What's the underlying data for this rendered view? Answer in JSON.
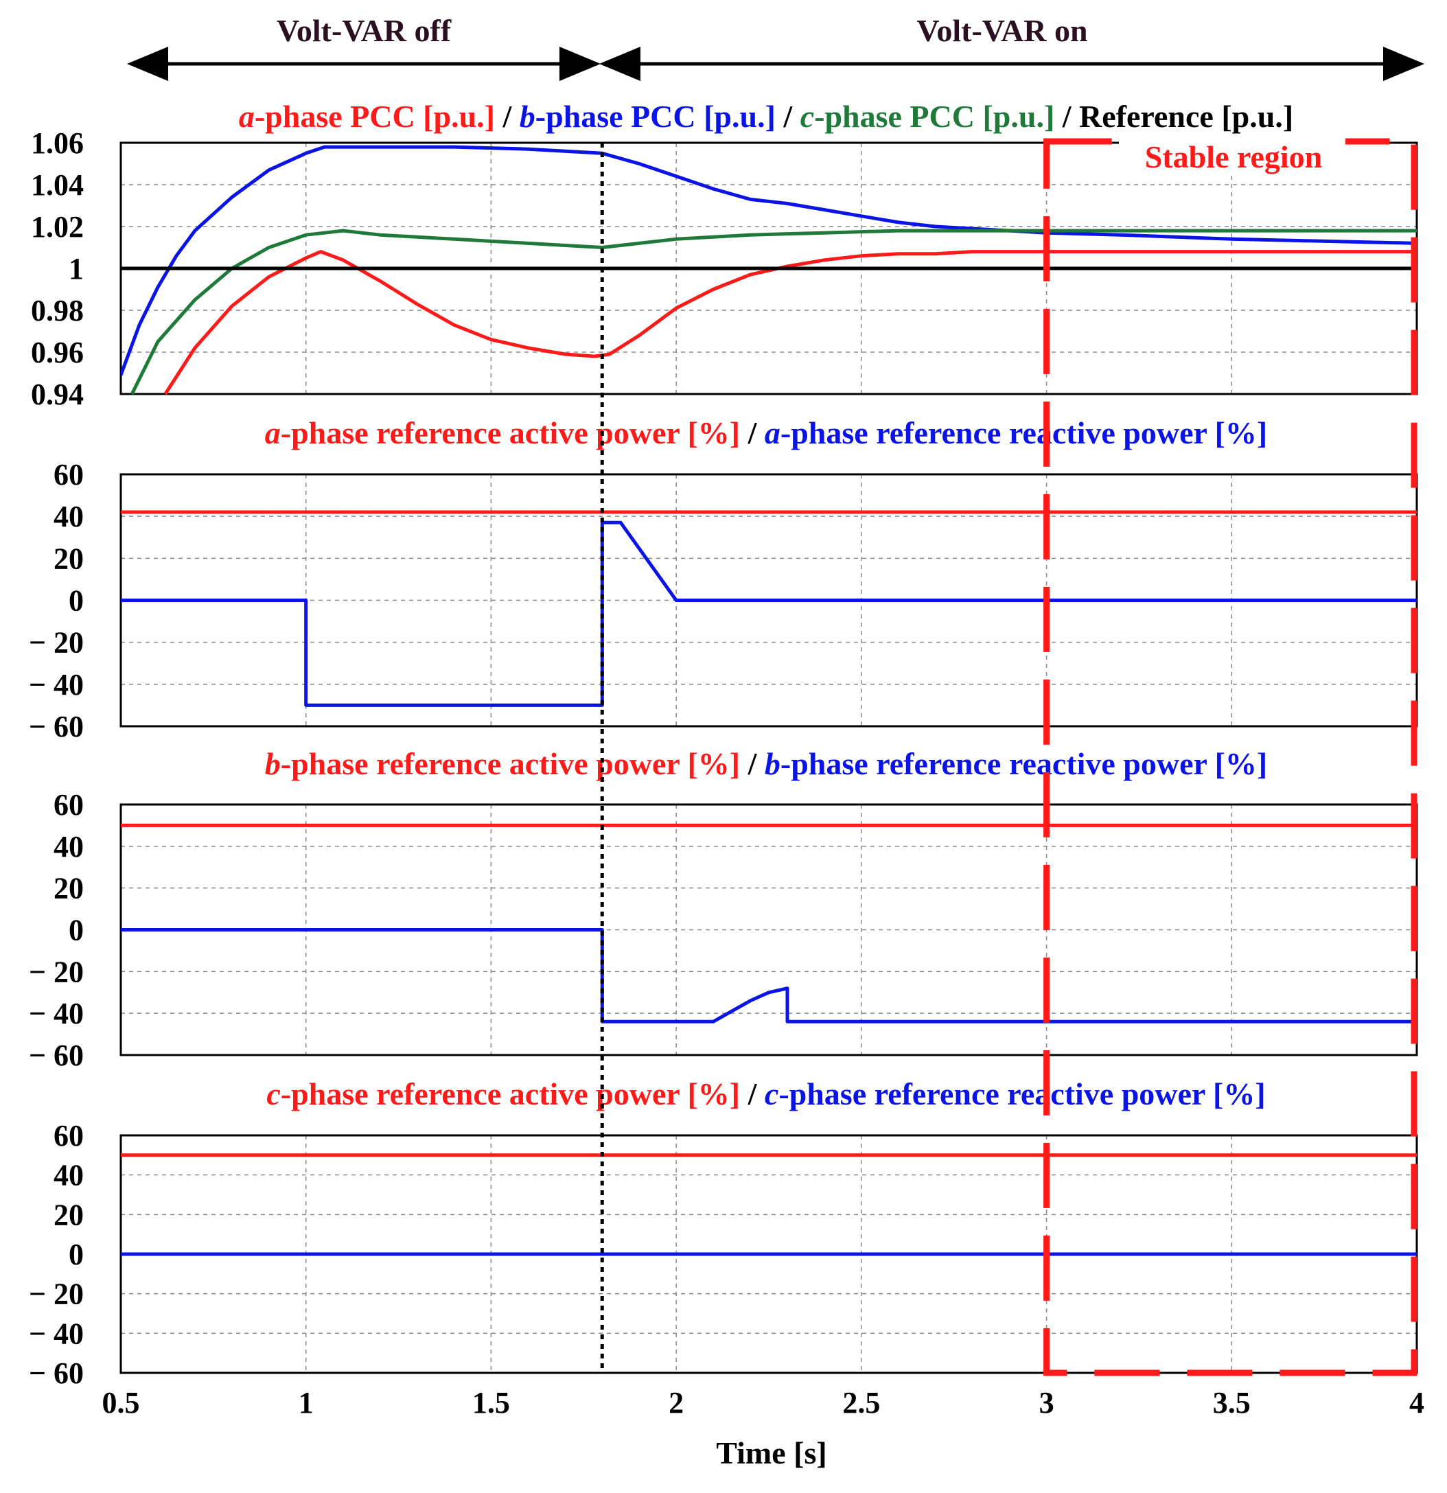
{
  "header": {
    "off_label": "Volt-VAR off",
    "on_label": "Volt-VAR on"
  },
  "colors": {
    "red": "#ff1a1a",
    "blue": "#0a14e6",
    "green": "#1f7a3a",
    "black": "#000000",
    "title_dark": "#2a1020"
  },
  "x_axis": {
    "label": "Time [s]",
    "ticks": [
      "0.5",
      "1",
      "1.5",
      "2",
      "2.5",
      "3",
      "3.5",
      "4"
    ],
    "range": [
      0.5,
      4
    ]
  },
  "annotations": {
    "switch_time": 1.8,
    "stable_region_label": "Stable region",
    "stable_region_start": 3.0,
    "stable_region_end": 4.0
  },
  "chart_data": [
    {
      "type": "line",
      "title_parts": [
        {
          "text": "a",
          "italic": true,
          "color": "red"
        },
        {
          "text": "-phase PCC [p.u.]",
          "italic": false,
          "color": "red"
        },
        {
          "text": " / ",
          "italic": false,
          "color": "black"
        },
        {
          "text": "b",
          "italic": true,
          "color": "blue"
        },
        {
          "text": "-phase PCC [p.u.]",
          "italic": false,
          "color": "blue"
        },
        {
          "text": " / ",
          "italic": false,
          "color": "black"
        },
        {
          "text": "c",
          "italic": true,
          "color": "green"
        },
        {
          "text": "-phase PCC [p.u.]",
          "italic": false,
          "color": "green"
        },
        {
          "text": " / Reference [p.u.]",
          "italic": false,
          "color": "black"
        }
      ],
      "ylim": [
        0.94,
        1.06
      ],
      "yticks": [
        "1.06",
        "1.04",
        "1.02",
        "1",
        "0.98",
        "0.96",
        "0.94"
      ],
      "ytick_values": [
        1.06,
        1.04,
        1.02,
        1.0,
        0.98,
        0.96,
        0.94
      ],
      "grid": true,
      "series": [
        {
          "name": "a-phase PCC",
          "color": "red",
          "x": [
            0.62,
            0.7,
            0.8,
            0.9,
            1.0,
            1.04,
            1.1,
            1.2,
            1.3,
            1.4,
            1.5,
            1.6,
            1.7,
            1.78,
            1.82,
            1.9,
            2.0,
            2.1,
            2.2,
            2.3,
            2.4,
            2.5,
            2.6,
            2.7,
            2.8,
            3.0,
            3.2,
            3.5,
            4.0
          ],
          "values": [
            0.94,
            0.962,
            0.982,
            0.996,
            1.005,
            1.008,
            1.004,
            0.994,
            0.983,
            0.973,
            0.966,
            0.962,
            0.959,
            0.958,
            0.959,
            0.968,
            0.981,
            0.99,
            0.997,
            1.001,
            1.004,
            1.006,
            1.007,
            1.007,
            1.008,
            1.008,
            1.008,
            1.008,
            1.008
          ]
        },
        {
          "name": "b-phase PCC",
          "color": "blue",
          "x": [
            0.5,
            0.55,
            0.6,
            0.65,
            0.7,
            0.8,
            0.9,
            1.0,
            1.05,
            1.1,
            1.2,
            1.4,
            1.6,
            1.8,
            1.9,
            2.0,
            2.1,
            2.2,
            2.3,
            2.4,
            2.5,
            2.6,
            2.7,
            2.8,
            2.9,
            3.0,
            3.2,
            3.5,
            4.0
          ],
          "values": [
            0.949,
            0.973,
            0.991,
            1.006,
            1.018,
            1.034,
            1.047,
            1.055,
            1.058,
            1.058,
            1.058,
            1.058,
            1.057,
            1.055,
            1.05,
            1.044,
            1.038,
            1.033,
            1.031,
            1.028,
            1.025,
            1.022,
            1.02,
            1.019,
            1.018,
            1.017,
            1.016,
            1.014,
            1.012
          ]
        },
        {
          "name": "c-phase PCC",
          "color": "green",
          "x": [
            0.53,
            0.6,
            0.7,
            0.8,
            0.9,
            1.0,
            1.05,
            1.1,
            1.2,
            1.3,
            1.4,
            1.5,
            1.6,
            1.7,
            1.8,
            1.9,
            2.0,
            2.2,
            2.4,
            2.6,
            2.8,
            3.0,
            3.5,
            4.0
          ],
          "values": [
            0.94,
            0.965,
            0.985,
            1.0,
            1.01,
            1.016,
            1.017,
            1.018,
            1.016,
            1.015,
            1.014,
            1.013,
            1.012,
            1.011,
            1.01,
            1.012,
            1.014,
            1.016,
            1.017,
            1.018,
            1.018,
            1.018,
            1.018,
            1.018
          ]
        },
        {
          "name": "Reference",
          "color": "black",
          "x": [
            0.5,
            4.0
          ],
          "values": [
            1.0,
            1.0
          ]
        }
      ]
    },
    {
      "type": "line",
      "title_parts": [
        {
          "text": "a",
          "italic": true,
          "color": "red"
        },
        {
          "text": "-phase reference active power [%]",
          "italic": false,
          "color": "red"
        },
        {
          "text": " / ",
          "italic": false,
          "color": "black"
        },
        {
          "text": "a",
          "italic": true,
          "color": "blue"
        },
        {
          "text": "-phase reference reactive power [%]",
          "italic": false,
          "color": "blue"
        }
      ],
      "ylim": [
        -60,
        60
      ],
      "yticks": [
        "60",
        "40",
        "20",
        "0",
        "− 20",
        "− 40",
        "− 60"
      ],
      "ytick_values": [
        60,
        40,
        20,
        0,
        -20,
        -40,
        -60
      ],
      "grid": true,
      "series": [
        {
          "name": "a-phase reference active power",
          "color": "red",
          "x": [
            0.5,
            4.0
          ],
          "values": [
            42,
            42
          ]
        },
        {
          "name": "a-phase reference reactive power",
          "color": "blue",
          "x": [
            0.5,
            1.0,
            1.0,
            1.8,
            1.8,
            1.85,
            2.0,
            4.0
          ],
          "values": [
            0,
            0,
            -50,
            -50,
            37,
            37,
            0,
            0
          ]
        }
      ]
    },
    {
      "type": "line",
      "title_parts": [
        {
          "text": "b",
          "italic": true,
          "color": "red"
        },
        {
          "text": "-phase reference active power [%]",
          "italic": false,
          "color": "red"
        },
        {
          "text": " / ",
          "italic": false,
          "color": "black"
        },
        {
          "text": "b",
          "italic": true,
          "color": "blue"
        },
        {
          "text": "-phase reference reactive power [%]",
          "italic": false,
          "color": "blue"
        }
      ],
      "ylim": [
        -60,
        60
      ],
      "yticks": [
        "60",
        "40",
        "20",
        "0",
        "− 20",
        "− 40",
        "− 60"
      ],
      "ytick_values": [
        60,
        40,
        20,
        0,
        -20,
        -40,
        -60
      ],
      "grid": true,
      "series": [
        {
          "name": "b-phase reference active power",
          "color": "red",
          "x": [
            0.5,
            4.0
          ],
          "values": [
            50,
            50
          ]
        },
        {
          "name": "b-phase reference reactive power",
          "color": "blue",
          "x": [
            0.5,
            1.8,
            1.8,
            2.1,
            2.15,
            2.2,
            2.25,
            2.3,
            2.3,
            4.0
          ],
          "values": [
            0,
            0,
            -44,
            -44,
            -39,
            -34,
            -30,
            -28,
            -44,
            -44
          ]
        }
      ]
    },
    {
      "type": "line",
      "title_parts": [
        {
          "text": "c",
          "italic": true,
          "color": "red"
        },
        {
          "text": "-phase reference active power [%]",
          "italic": false,
          "color": "red"
        },
        {
          "text": " / ",
          "italic": false,
          "color": "black"
        },
        {
          "text": "c",
          "italic": true,
          "color": "blue"
        },
        {
          "text": "-phase reference reactive power [%]",
          "italic": false,
          "color": "blue"
        }
      ],
      "ylim": [
        -60,
        60
      ],
      "yticks": [
        "60",
        "40",
        "20",
        "0",
        "− 20",
        "− 40",
        "− 60"
      ],
      "ytick_values": [
        60,
        40,
        20,
        0,
        -20,
        -40,
        -60
      ],
      "grid": true,
      "series": [
        {
          "name": "c-phase reference active power",
          "color": "red",
          "x": [
            0.5,
            4.0
          ],
          "values": [
            50,
            50
          ]
        },
        {
          "name": "c-phase reference reactive power",
          "color": "blue",
          "x": [
            0.5,
            4.0
          ],
          "values": [
            0,
            0
          ]
        }
      ]
    }
  ]
}
